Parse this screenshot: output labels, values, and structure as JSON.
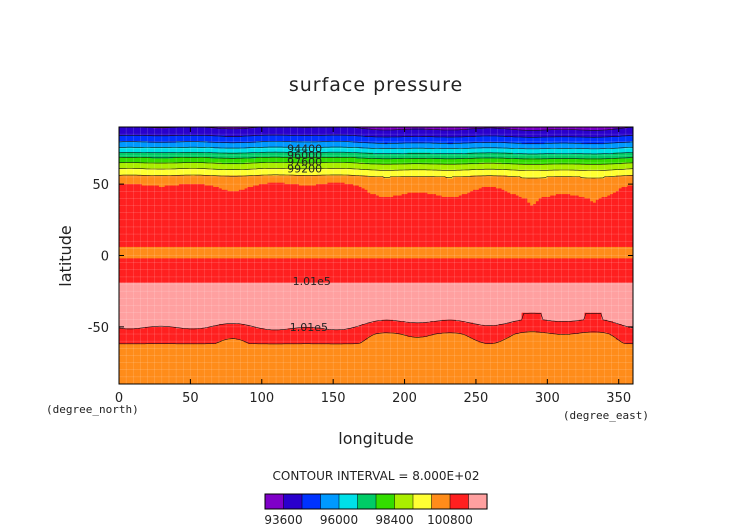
{
  "chart_data": {
    "type": "heatmap",
    "title": "surface pressure",
    "xlabel": "longitude",
    "ylabel": "latitude",
    "x_unit": "(degree_east)",
    "y_unit": "(degree_north)",
    "xlim": [
      0,
      360
    ],
    "ylim": [
      -90,
      90
    ],
    "x_ticks": [
      0,
      50,
      100,
      150,
      200,
      250,
      300,
      350
    ],
    "y_ticks": [
      -50,
      0,
      50
    ],
    "contour_interval_text": "CONTOUR INTERVAL = 8.000E+02",
    "levels": [
      93600,
      94400,
      95200,
      96000,
      96800,
      97600,
      98400,
      99200,
      100000,
      100800,
      101600
    ],
    "colorbar_tick_labels": [
      "93600",
      "96000",
      "98400",
      "100800"
    ],
    "colors": [
      "#7f00c8",
      "#2a00cc",
      "#0033ff",
      "#0099ff",
      "#00e0e8",
      "#00cc66",
      "#33dd00",
      "#aaee00",
      "#ffff33",
      "#ff8c1a",
      "#ff2020",
      "#ffa0a0"
    ],
    "grid": true,
    "contour_labels": [
      {
        "text": "94400",
        "x": 130,
        "y": 75
      },
      {
        "text": "96000",
        "x": 130,
        "y": 70.5
      },
      {
        "text": "97600",
        "x": 130,
        "y": 66
      },
      {
        "text": "99200",
        "x": 130,
        "y": 61
      },
      {
        "text": "1.01e5",
        "x": 135,
        "y": -18
      },
      {
        "text": "1.01e5",
        "x": 133,
        "y": -50
      }
    ]
  }
}
